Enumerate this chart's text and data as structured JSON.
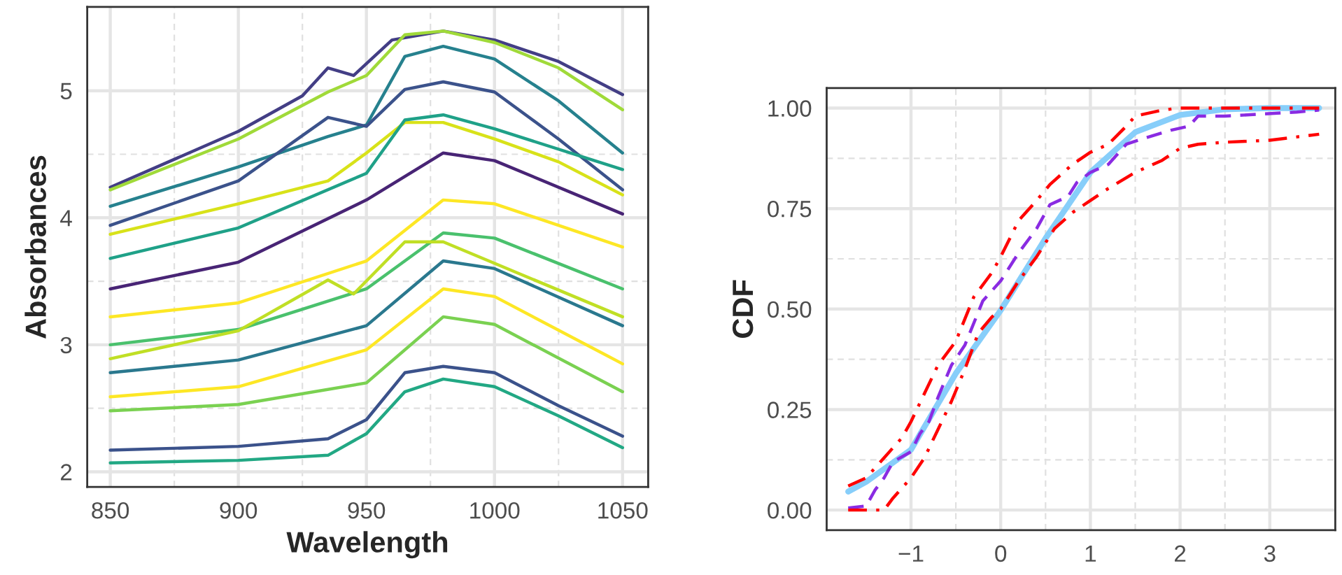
{
  "chart_data": [
    {
      "type": "line",
      "xlabel": "Wavelength",
      "ylabel": "Absorbances",
      "xlim": [
        841,
        1060
      ],
      "ylim": [
        1.88,
        5.66
      ],
      "xticks": [
        850,
        900,
        950,
        1000,
        1050
      ],
      "yticks": [
        2,
        3,
        4,
        5
      ],
      "grid": true,
      "legend": false,
      "line_style": "solid",
      "marker": "none",
      "series": [
        {
          "color": "#433e85",
          "x": [
            850,
            900,
            925,
            935,
            945,
            960,
            980,
            1000,
            1025,
            1050
          ],
          "values": [
            4.24,
            4.68,
            4.96,
            5.18,
            5.12,
            5.4,
            5.47,
            5.4,
            5.23,
            4.97
          ]
        },
        {
          "color": "#a0da39",
          "x": [
            850,
            900,
            935,
            950,
            965,
            980,
            1000,
            1025,
            1050
          ],
          "values": [
            4.22,
            4.62,
            4.99,
            5.12,
            5.44,
            5.47,
            5.38,
            5.18,
            4.85
          ]
        },
        {
          "color": "#26818e",
          "x": [
            850,
            900,
            935,
            950,
            965,
            980,
            1000,
            1025,
            1050
          ],
          "values": [
            4.09,
            4.4,
            4.64,
            4.73,
            5.27,
            5.35,
            5.25,
            4.92,
            4.51
          ]
        },
        {
          "color": "#3b528b",
          "x": [
            850,
            900,
            935,
            950,
            965,
            980,
            1000,
            1025,
            1050
          ],
          "values": [
            3.94,
            4.29,
            4.79,
            4.72,
            5.01,
            5.07,
            4.99,
            4.62,
            4.22
          ]
        },
        {
          "color": "#d8e219",
          "x": [
            850,
            900,
            935,
            950,
            965,
            980,
            1000,
            1025,
            1050
          ],
          "values": [
            3.87,
            4.11,
            4.29,
            4.51,
            4.75,
            4.75,
            4.62,
            4.44,
            4.18
          ]
        },
        {
          "color": "#1fa188",
          "x": [
            850,
            900,
            950,
            965,
            980,
            1000,
            1050
          ],
          "values": [
            3.68,
            3.92,
            4.35,
            4.77,
            4.81,
            4.7,
            4.38
          ]
        },
        {
          "color": "#482475",
          "x": [
            850,
            900,
            950,
            980,
            1000,
            1050
          ],
          "values": [
            3.44,
            3.65,
            4.14,
            4.51,
            4.45,
            4.03
          ]
        },
        {
          "color": "#fde725",
          "x": [
            850,
            900,
            950,
            980,
            1000,
            1050
          ],
          "values": [
            3.22,
            3.33,
            3.66,
            4.14,
            4.11,
            3.77
          ]
        },
        {
          "color": "#4ac16d",
          "x": [
            850,
            900,
            950,
            980,
            1000,
            1050
          ],
          "values": [
            3.0,
            3.12,
            3.44,
            3.88,
            3.84,
            3.44
          ]
        },
        {
          "color": "#c0df25",
          "x": [
            850,
            900,
            935,
            945,
            965,
            980,
            1050
          ],
          "values": [
            2.89,
            3.11,
            3.51,
            3.4,
            3.81,
            3.81,
            3.22
          ]
        },
        {
          "color": "#2a788e",
          "x": [
            850,
            900,
            950,
            980,
            1000,
            1050
          ],
          "values": [
            2.78,
            2.88,
            3.15,
            3.66,
            3.6,
            3.15
          ]
        },
        {
          "color": "#fde725",
          "x": [
            850,
            900,
            950,
            980,
            1000,
            1050
          ],
          "values": [
            2.59,
            2.67,
            2.96,
            3.44,
            3.38,
            2.85
          ]
        },
        {
          "color": "#7ad151",
          "x": [
            850,
            900,
            950,
            980,
            1000,
            1050
          ],
          "values": [
            2.48,
            2.53,
            2.7,
            3.22,
            3.16,
            2.63
          ]
        },
        {
          "color": "#3b528b",
          "x": [
            850,
            900,
            935,
            950,
            965,
            980,
            1000,
            1025,
            1050
          ],
          "values": [
            2.17,
            2.2,
            2.26,
            2.41,
            2.78,
            2.83,
            2.78,
            2.52,
            2.28
          ]
        },
        {
          "color": "#22a884",
          "x": [
            850,
            900,
            935,
            950,
            965,
            980,
            1000,
            1025,
            1050
          ],
          "values": [
            2.07,
            2.09,
            2.13,
            2.3,
            2.63,
            2.73,
            2.67,
            2.44,
            2.19
          ]
        }
      ]
    },
    {
      "type": "line",
      "ylabel": "CDF",
      "xlim": [
        -1.94,
        3.73
      ],
      "ylim": [
        -0.05,
        1.05
      ],
      "xticks": [
        {
          "value": -1,
          "label": "−1"
        },
        0,
        1,
        2,
        3
      ],
      "yticks": [
        {
          "value": 0,
          "label": "0.00"
        },
        {
          "value": 0.25,
          "label": "0.25"
        },
        {
          "value": 0.5,
          "label": "0.50"
        },
        {
          "value": 0.75,
          "label": "0.75"
        },
        {
          "value": 1,
          "label": "1.00"
        }
      ],
      "grid": true,
      "legend": false,
      "marker": "none",
      "series": [
        {
          "color": "#87cefa",
          "line_style": "solid",
          "x": [
            -1.7,
            -1.5,
            -1,
            -0.5,
            0,
            0.5,
            1,
            1.5,
            2,
            2.5,
            3,
            3.55
          ],
          "values": [
            0.046,
            0.07,
            0.15,
            0.34,
            0.497,
            0.676,
            0.84,
            0.94,
            0.983,
            0.997,
            1.0,
            1.0
          ]
        },
        {
          "color": "#8a2be2",
          "line_style": "dashed",
          "x": [
            -1.7,
            -1.5,
            -1.4,
            -1.3,
            -1.2,
            -1.0,
            -0.9,
            -0.8,
            -0.7,
            -0.55,
            -0.4,
            -0.2,
            0,
            0.2,
            0.4,
            0.55,
            0.75,
            0.85,
            1.0,
            1.2,
            1.4,
            1.6,
            1.9,
            2.1,
            2.2,
            2.5,
            2.9,
            3.3,
            3.55
          ],
          "values": [
            0.005,
            0.01,
            0.05,
            0.08,
            0.12,
            0.145,
            0.19,
            0.22,
            0.28,
            0.36,
            0.41,
            0.52,
            0.57,
            0.64,
            0.7,
            0.76,
            0.78,
            0.815,
            0.84,
            0.86,
            0.91,
            0.925,
            0.945,
            0.955,
            0.98,
            0.98,
            0.985,
            0.99,
            0.995
          ]
        },
        {
          "color": "#ff0000",
          "line_style": "dashdot",
          "x": [
            -1.7,
            -1.5,
            -1.3,
            -1.1,
            -1.0,
            -0.85,
            -0.7,
            -0.5,
            -0.3,
            -0.1,
            0,
            0.2,
            0.4,
            0.55,
            0.8,
            1.0,
            1.2,
            1.4,
            1.5,
            1.8,
            2.0,
            3.55
          ],
          "values": [
            0.06,
            0.08,
            0.13,
            0.18,
            0.22,
            0.29,
            0.36,
            0.42,
            0.53,
            0.59,
            0.63,
            0.72,
            0.77,
            0.81,
            0.86,
            0.89,
            0.91,
            0.955,
            0.98,
            0.995,
            1.0,
            1.0
          ]
        },
        {
          "color": "#ff0000",
          "line_style": "dashdot",
          "x": [
            -1.7,
            -1.3,
            -1.2,
            -1.0,
            -0.85,
            -0.7,
            -0.55,
            -0.4,
            -0.25,
            -0.1,
            0,
            0.2,
            0.4,
            0.6,
            0.8,
            1.0,
            1.2,
            1.5,
            1.8,
            2.0,
            2.2,
            2.5,
            3.0,
            3.55
          ],
          "values": [
            0.0,
            0.0,
            0.03,
            0.08,
            0.13,
            0.2,
            0.27,
            0.35,
            0.44,
            0.48,
            0.5,
            0.57,
            0.63,
            0.7,
            0.74,
            0.77,
            0.8,
            0.84,
            0.87,
            0.9,
            0.91,
            0.915,
            0.92,
            0.935
          ]
        }
      ]
    }
  ]
}
